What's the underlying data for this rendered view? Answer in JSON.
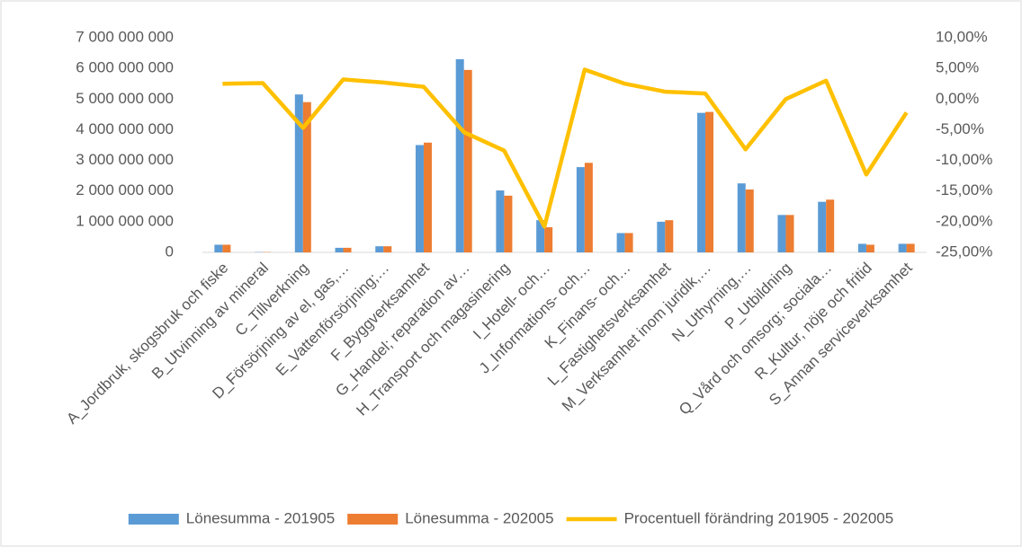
{
  "chart_data": {
    "type": "bar",
    "categories": [
      "A_Jordbruk, skogsbruk och fiske",
      "B_Utvinning av mineral",
      "C_Tillverkning",
      "D_Försörjning av el, gas,…",
      "E_Vattenförsörjning;…",
      "F_Byggverksamhet",
      "G_Handel; reparation av…",
      "H_Transport och magasinering",
      "I_Hotell- och…",
      "J_Informations- och…",
      "K_Finans- och…",
      "L_Fastighetsverksamhet",
      "M_Verksamhet inom juridik,…",
      "N_Uthyrning,…",
      "P_Utbildning",
      "Q_Vård och omsorg; sociala…",
      "R_Kultur, nöje och fritid",
      "S_Annan serviceverksamhet"
    ],
    "series": [
      {
        "name": "Lönesumma - 201905",
        "type": "bar",
        "color": "#5b9bd5",
        "values": [
          250000000,
          10000000,
          5150000000,
          150000000,
          200000000,
          3500000000,
          6300000000,
          2020000000,
          1050000000,
          2780000000,
          630000000,
          1000000000,
          4550000000,
          2250000000,
          1220000000,
          1650000000,
          280000000,
          280000000
        ]
      },
      {
        "name": "Lönesumma - 202005",
        "type": "bar",
        "color": "#ed7d31",
        "values": [
          250000000,
          10000000,
          4900000000,
          150000000,
          200000000,
          3580000000,
          5950000000,
          1850000000,
          820000000,
          2920000000,
          630000000,
          1050000000,
          4580000000,
          2050000000,
          1220000000,
          1720000000,
          250000000,
          280000000
        ]
      },
      {
        "name": "Procentuell förändring 201905 - 202005",
        "type": "line",
        "axis": "y2",
        "color": "#ffc000",
        "values": [
          2.5,
          2.6,
          -4.7,
          3.2,
          2.7,
          2.0,
          -5.4,
          -8.4,
          -20.8,
          4.8,
          2.5,
          1.2,
          0.9,
          -8.2,
          0.0,
          3.0,
          -12.3,
          -2.2
        ]
      }
    ],
    "ylim": [
      0,
      7000000000
    ],
    "yticks": [
      {
        "value": 0,
        "label": "0"
      },
      {
        "value": 1000000000,
        "label": "1 000 000 000"
      },
      {
        "value": 2000000000,
        "label": "2 000 000 000"
      },
      {
        "value": 3000000000,
        "label": "3 000 000 000"
      },
      {
        "value": 4000000000,
        "label": "4 000 000 000"
      },
      {
        "value": 5000000000,
        "label": "5 000 000 000"
      },
      {
        "value": 6000000000,
        "label": "6 000 000 000"
      },
      {
        "value": 7000000000,
        "label": "7 000 000 000"
      }
    ],
    "y2lim": [
      -25,
      10
    ],
    "y2ticks": [
      {
        "value": -25,
        "label": "-25,00%"
      },
      {
        "value": -20,
        "label": "-20,00%"
      },
      {
        "value": -15,
        "label": "-15,00%"
      },
      {
        "value": -10,
        "label": "-10,00%"
      },
      {
        "value": -5,
        "label": "-5,00%"
      },
      {
        "value": 0,
        "label": "0,00%"
      },
      {
        "value": 5,
        "label": "5,00%"
      },
      {
        "value": 10,
        "label": "10,00%"
      }
    ],
    "legend": "bottom"
  }
}
